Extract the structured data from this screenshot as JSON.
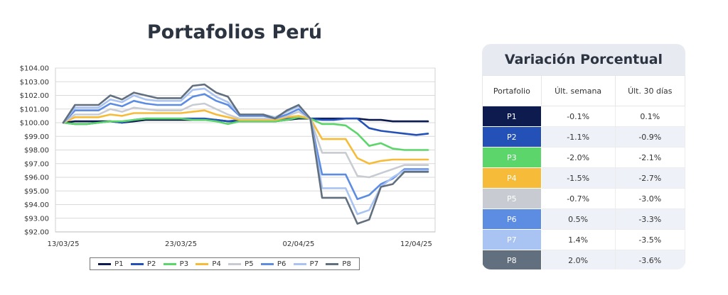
{
  "chart_data": {
    "type": "line",
    "title": "Portafolios Perú",
    "xlabel": "",
    "ylabel": "",
    "ylim": [
      92,
      104
    ],
    "yticks": [
      "$92.00",
      "$93.00",
      "$94.00",
      "$95.00",
      "$96.00",
      "$97.00",
      "$98.00",
      "$99.00",
      "$100.00",
      "$101.00",
      "$102.00",
      "$103.00",
      "$104.00"
    ],
    "x_tick_labels": [
      {
        "index": 0,
        "label": "13/03/25"
      },
      {
        "index": 10,
        "label": "23/03/25"
      },
      {
        "index": 20,
        "label": "02/04/25"
      },
      {
        "index": 30,
        "label": "12/04/25"
      }
    ],
    "n_points": 32,
    "series": [
      {
        "name": "P1",
        "color": "#0d1b4f",
        "values": [
          100.0,
          100.1,
          100.1,
          100.1,
          100.1,
          100.0,
          100.1,
          100.2,
          100.2,
          100.2,
          100.2,
          100.2,
          100.2,
          100.2,
          100.1,
          100.1,
          100.1,
          100.1,
          100.1,
          100.2,
          100.3,
          100.3,
          100.3,
          100.3,
          100.3,
          100.3,
          100.2,
          100.2,
          100.1,
          100.1,
          100.1,
          100.1
        ]
      },
      {
        "name": "P2",
        "color": "#2451b7",
        "values": [
          100.0,
          99.9,
          99.9,
          100.0,
          100.1,
          100.0,
          100.2,
          100.3,
          100.3,
          100.3,
          100.3,
          100.3,
          100.3,
          100.2,
          100.1,
          100.2,
          100.2,
          100.2,
          100.2,
          100.3,
          100.4,
          100.3,
          100.2,
          100.2,
          100.3,
          100.3,
          99.6,
          99.4,
          99.3,
          99.2,
          99.1,
          99.2
        ]
      },
      {
        "name": "P3",
        "color": "#5cd66b",
        "values": [
          100.0,
          99.9,
          99.9,
          100.0,
          100.1,
          100.1,
          100.2,
          100.3,
          100.3,
          100.3,
          100.3,
          100.2,
          100.2,
          100.1,
          99.9,
          100.1,
          100.1,
          100.1,
          100.1,
          100.2,
          100.4,
          100.3,
          99.9,
          99.9,
          99.8,
          99.2,
          98.3,
          98.5,
          98.1,
          98.0,
          98.0,
          98.0
        ]
      },
      {
        "name": "P4",
        "color": "#f6bb38",
        "values": [
          100.0,
          100.4,
          100.4,
          100.4,
          100.6,
          100.5,
          100.7,
          100.7,
          100.7,
          100.7,
          100.7,
          100.8,
          100.9,
          100.6,
          100.4,
          100.2,
          100.2,
          100.2,
          100.2,
          100.4,
          100.5,
          100.3,
          98.8,
          98.8,
          98.8,
          97.4,
          97.0,
          97.2,
          97.3,
          97.3,
          97.3,
          97.3
        ]
      },
      {
        "name": "P5",
        "color": "#c8ccd2",
        "values": [
          100.0,
          100.6,
          100.6,
          100.6,
          101.0,
          100.8,
          101.1,
          101.0,
          100.9,
          100.9,
          100.9,
          101.3,
          101.4,
          101.0,
          100.6,
          100.3,
          100.3,
          100.3,
          100.3,
          100.5,
          100.8,
          100.3,
          97.8,
          97.8,
          97.8,
          96.1,
          96.0,
          96.3,
          96.6,
          96.9,
          96.9,
          96.9
        ]
      },
      {
        "name": "P6",
        "color": "#5d8ce3",
        "values": [
          100.0,
          100.9,
          100.9,
          100.9,
          101.4,
          101.2,
          101.6,
          101.4,
          101.3,
          101.3,
          101.3,
          101.9,
          102.1,
          101.6,
          101.3,
          100.5,
          100.5,
          100.5,
          100.3,
          100.6,
          101.0,
          100.3,
          96.2,
          96.2,
          96.2,
          94.4,
          94.7,
          95.5,
          95.9,
          96.6,
          96.6,
          96.6
        ]
      },
      {
        "name": "P7",
        "color": "#a9c3f2",
        "values": [
          100.0,
          101.1,
          101.1,
          101.1,
          101.7,
          101.5,
          102.0,
          101.7,
          101.6,
          101.6,
          101.6,
          102.4,
          102.5,
          101.9,
          101.5,
          100.6,
          100.6,
          100.6,
          100.4,
          100.8,
          101.2,
          100.3,
          95.2,
          95.2,
          95.2,
          93.3,
          93.6,
          95.3,
          96.0,
          96.5,
          96.5,
          96.5
        ]
      },
      {
        "name": "P8",
        "color": "#616f7e",
        "values": [
          100.0,
          101.3,
          101.3,
          101.3,
          102.0,
          101.7,
          102.2,
          102.0,
          101.8,
          101.8,
          101.8,
          102.7,
          102.8,
          102.2,
          101.9,
          100.6,
          100.6,
          100.6,
          100.3,
          100.9,
          101.3,
          100.3,
          94.5,
          94.5,
          94.5,
          92.6,
          92.9,
          95.3,
          95.5,
          96.4,
          96.4,
          96.4
        ]
      }
    ]
  },
  "legend": {
    "items": [
      {
        "label": "P1",
        "color": "#0d1b4f"
      },
      {
        "label": "P2",
        "color": "#2451b7"
      },
      {
        "label": "P3",
        "color": "#5cd66b"
      },
      {
        "label": "P4",
        "color": "#f6bb38"
      },
      {
        "label": "P5",
        "color": "#c8ccd2"
      },
      {
        "label": "P6",
        "color": "#5d8ce3"
      },
      {
        "label": "P7",
        "color": "#a9c3f2"
      },
      {
        "label": "P8",
        "color": "#616f7e"
      }
    ]
  },
  "table": {
    "title": "Variación Porcentual",
    "headers": [
      "Portafolio",
      "Últ. semana",
      "Últ. 30 días"
    ],
    "rows": [
      {
        "name": "P1",
        "color": "#0d1b4f",
        "week": "-0.1%",
        "month": "0.1%"
      },
      {
        "name": "P2",
        "color": "#2451b7",
        "week": "-1.1%",
        "month": "-0.9%"
      },
      {
        "name": "P3",
        "color": "#5cd66b",
        "week": "-2.0%",
        "month": "-2.1%"
      },
      {
        "name": "P4",
        "color": "#f6bb38",
        "week": "-1.5%",
        "month": "-2.7%"
      },
      {
        "name": "P5",
        "color": "#c8ccd2",
        "week": "-0.7%",
        "month": "-3.0%"
      },
      {
        "name": "P6",
        "color": "#5d8ce3",
        "week": "0.5%",
        "month": "-3.3%"
      },
      {
        "name": "P7",
        "color": "#a9c3f2",
        "week": "1.4%",
        "month": "-3.5%"
      },
      {
        "name": "P8",
        "color": "#616f7e",
        "week": "2.0%",
        "month": "-3.6%"
      }
    ]
  }
}
